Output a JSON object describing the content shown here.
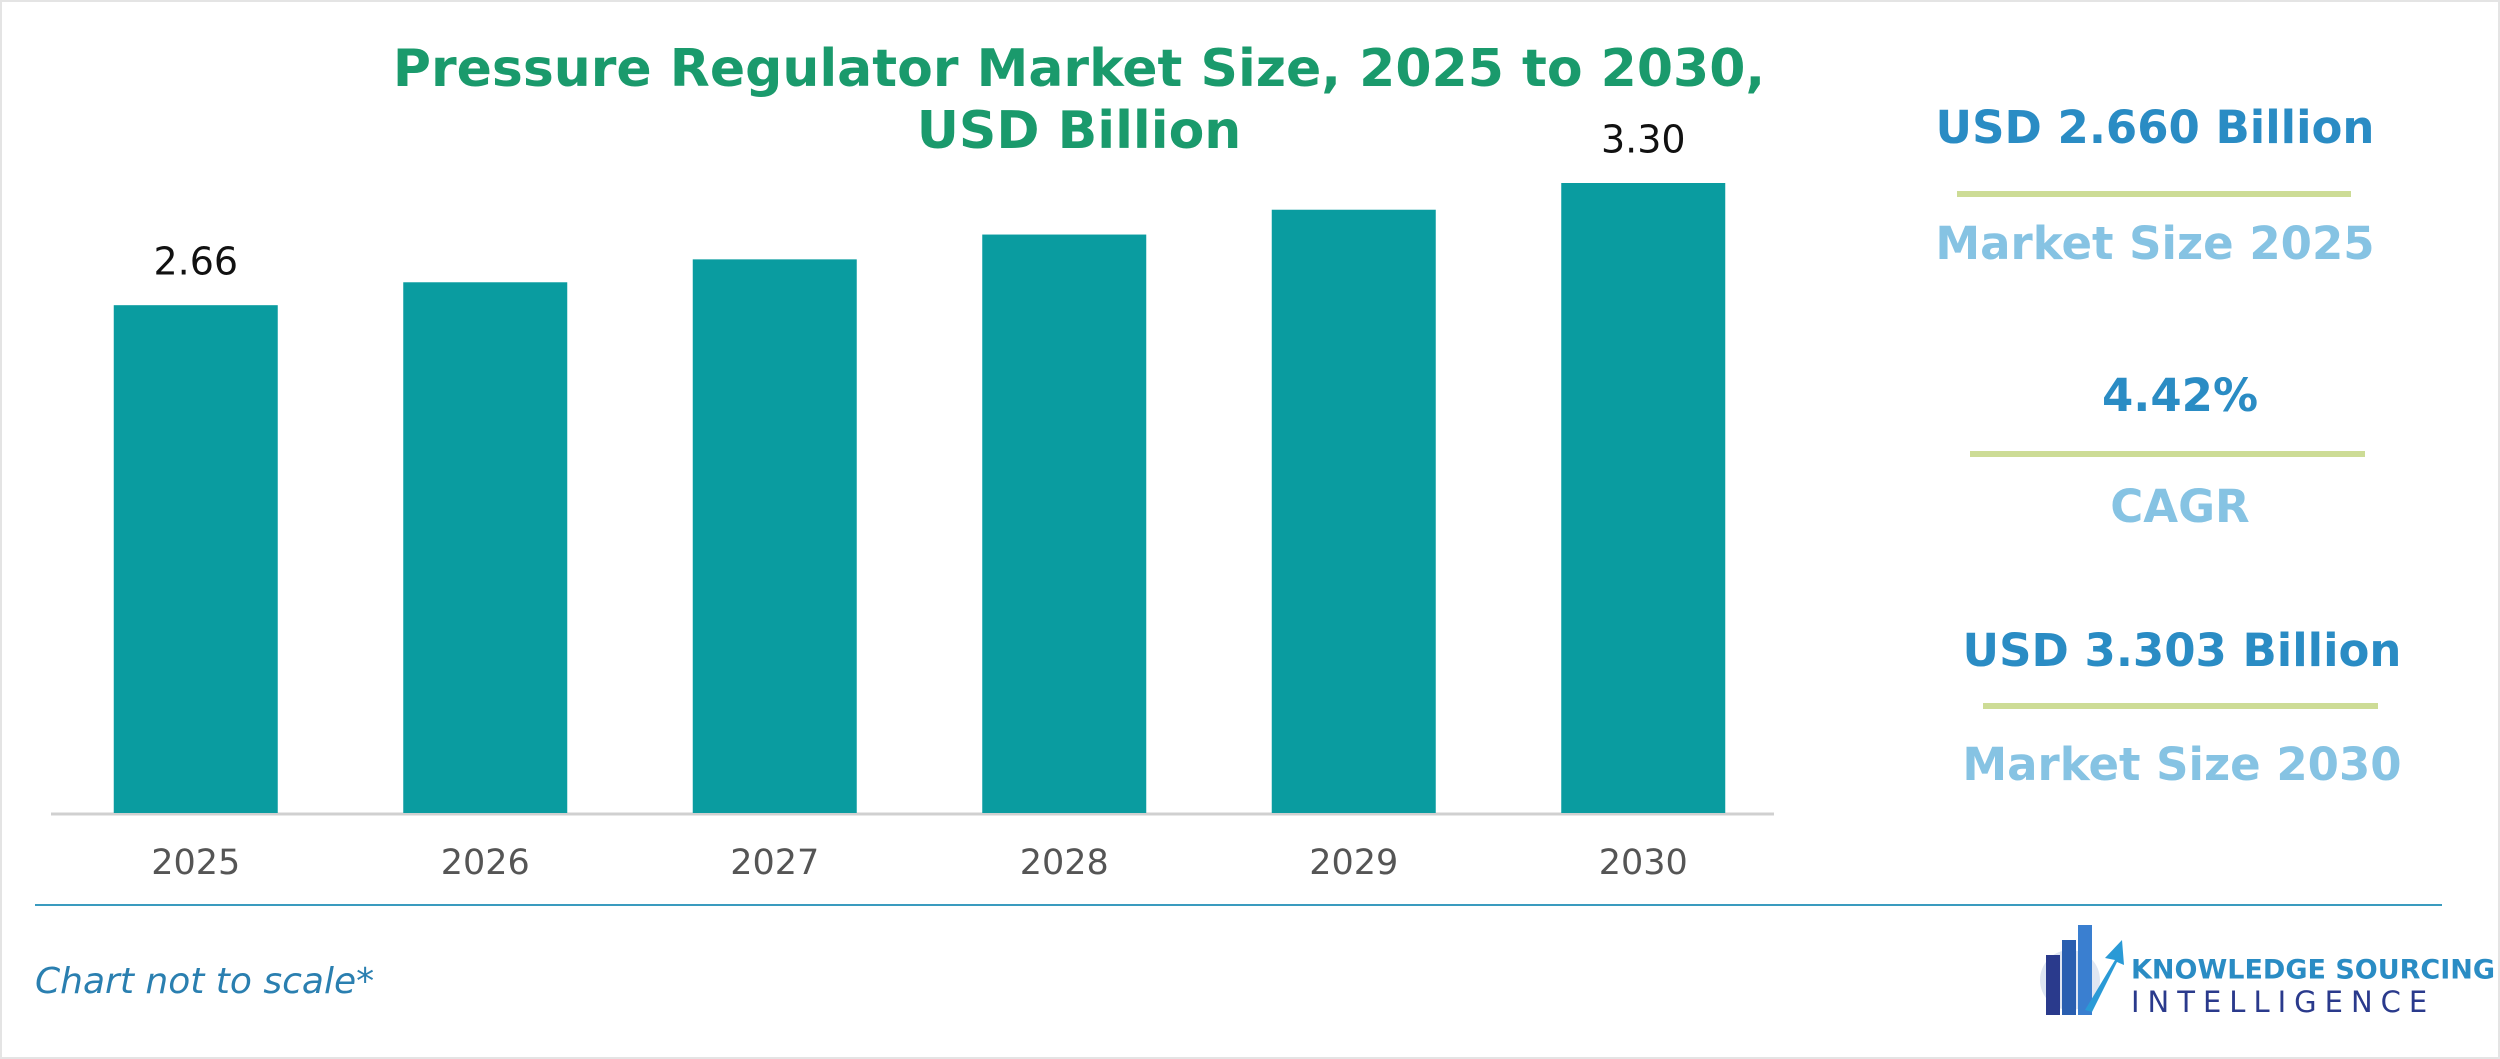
{
  "chart_data": {
    "type": "bar",
    "title_lines": [
      "Pressure Regulator Market Size, 2025 to 2030,",
      "USD Billion"
    ],
    "categories": [
      "2025",
      "2026",
      "2027",
      "2028",
      "2029",
      "2030"
    ],
    "values": [
      2.66,
      2.78,
      2.9,
      3.03,
      3.16,
      3.3
    ],
    "value_labels": [
      "2.66",
      null,
      null,
      null,
      null,
      "3.30"
    ],
    "color": "#0a9ca0"
  },
  "stats": [
    {
      "value": "USD 2.660 Billion",
      "label": "Market Size 2025"
    },
    {
      "value": "4.42%",
      "label": "CAGR"
    },
    {
      "value": "USD 3.303 Billion",
      "label": "Market Size 2030"
    }
  ],
  "footnote": "Chart not to scale*",
  "logo": {
    "line1": "KNOWLEDGE SOURCING",
    "line2": "INTELLIGENCE"
  }
}
